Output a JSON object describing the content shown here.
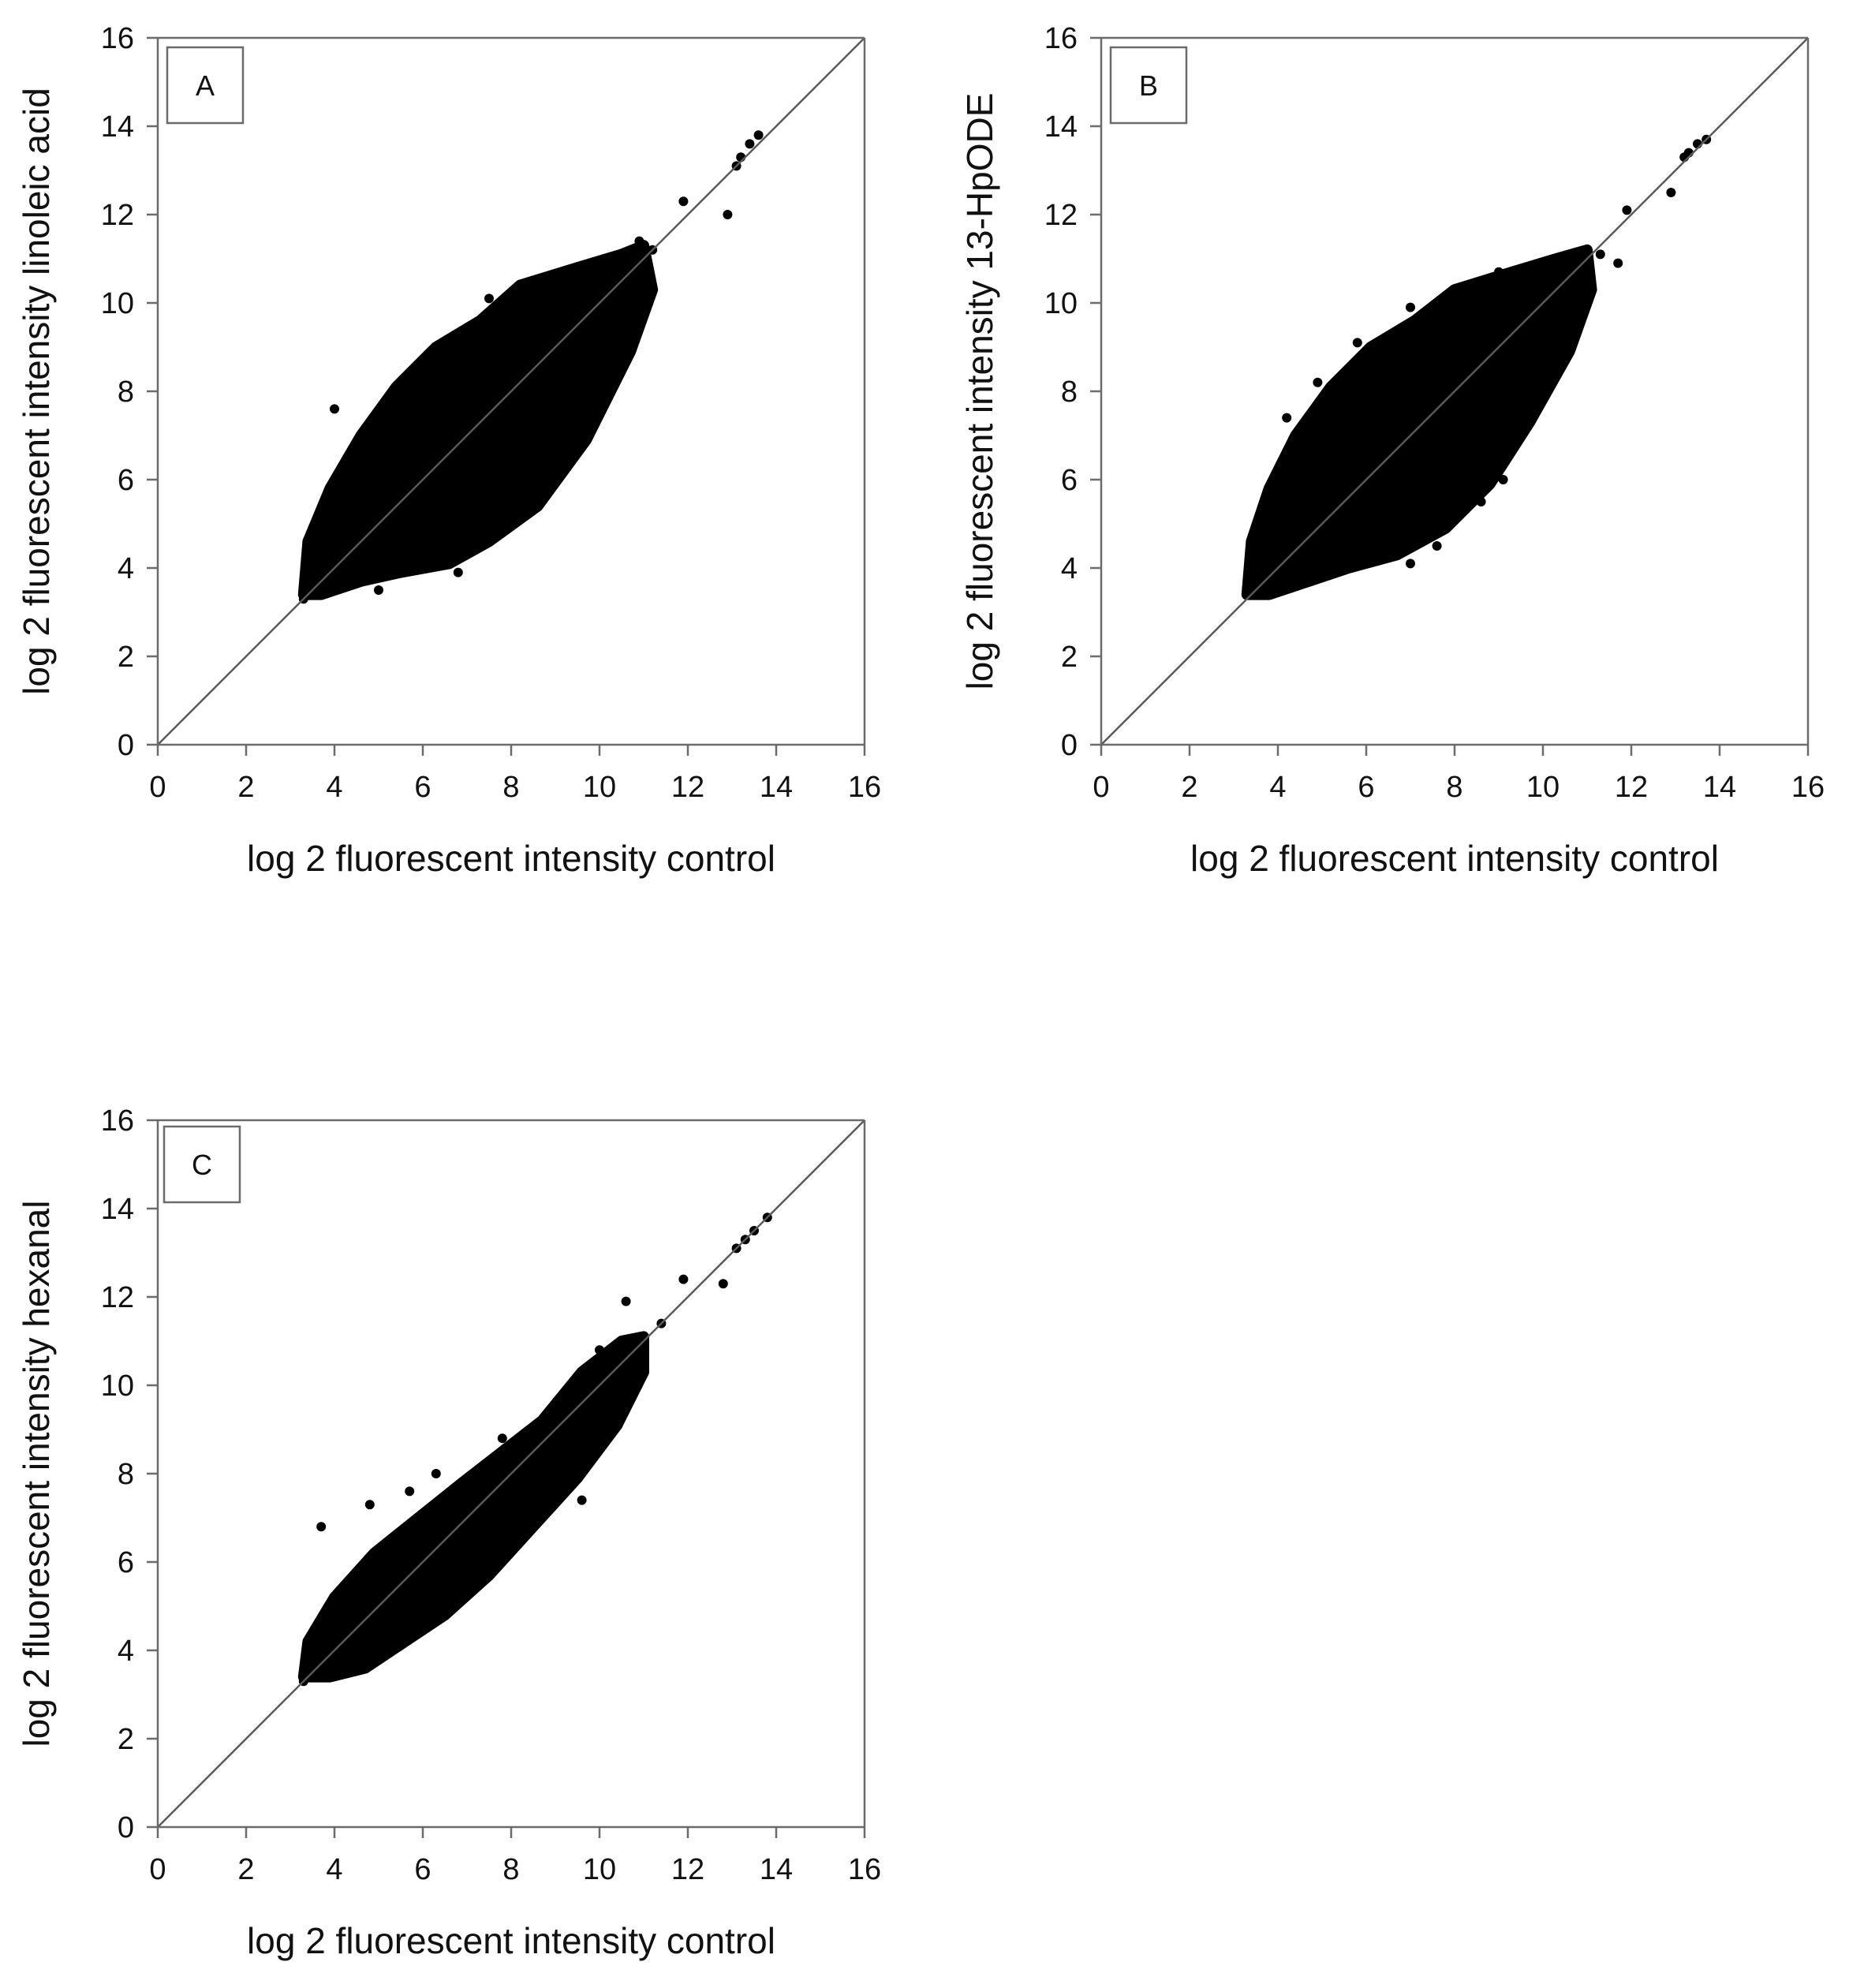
{
  "chart_data": [
    {
      "type": "scatter",
      "panel_label": "A",
      "xlabel": "log 2 fluorescent intensity control",
      "ylabel": "log 2 fluorescent intensity linoleic acid",
      "xlim": [
        0,
        16
      ],
      "ylim": [
        0,
        16
      ],
      "xticks": [
        "0",
        "2",
        "4",
        "6",
        "8",
        "10",
        "12",
        "14",
        "16"
      ],
      "yticks": [
        "0",
        "2",
        "4",
        "6",
        "8",
        "10",
        "12",
        "14",
        "16"
      ],
      "reference_line": "y = x",
      "cloud": [
        [
          3.3,
          3.4
        ],
        [
          3.7,
          3.4
        ],
        [
          4.6,
          3.7
        ],
        [
          5.5,
          3.9
        ],
        [
          6.6,
          4.1
        ],
        [
          7.5,
          4.6
        ],
        [
          8.6,
          5.4
        ],
        [
          9.7,
          6.9
        ],
        [
          10.7,
          8.9
        ],
        [
          11.2,
          10.3
        ],
        [
          11.0,
          11.3
        ],
        [
          10.5,
          11.1
        ],
        [
          9.5,
          10.8
        ],
        [
          8.2,
          10.4
        ],
        [
          7.3,
          9.6
        ],
        [
          6.3,
          9.0
        ],
        [
          5.4,
          8.1
        ],
        [
          4.6,
          7.0
        ],
        [
          3.9,
          5.8
        ],
        [
          3.4,
          4.6
        ]
      ],
      "outliers": [
        [
          13.6,
          13.8
        ],
        [
          13.4,
          13.6
        ],
        [
          13.2,
          13.3
        ],
        [
          13.1,
          13.1
        ],
        [
          11.9,
          12.3
        ],
        [
          12.9,
          12.0
        ],
        [
          11.2,
          11.2
        ],
        [
          10.9,
          11.4
        ],
        [
          8.9,
          10.0
        ],
        [
          7.5,
          10.1
        ],
        [
          6.5,
          9.0
        ],
        [
          4.0,
          7.6
        ],
        [
          9.3,
          6.9
        ],
        [
          6.8,
          3.9
        ],
        [
          5.0,
          3.5
        ],
        [
          4.2,
          3.6
        ],
        [
          10.3,
          10.6
        ],
        [
          9.9,
          10.8
        ],
        [
          3.3,
          3.3
        ],
        [
          8.1,
          5.1
        ]
      ]
    },
    {
      "type": "scatter",
      "panel_label": "B",
      "xlabel": "log 2 fluorescent intensity control",
      "ylabel": "log 2 fluorescent intensity 13-HpODE",
      "xlim": [
        0,
        16
      ],
      "ylim": [
        0,
        16
      ],
      "xticks": [
        "0",
        "2",
        "4",
        "6",
        "8",
        "10",
        "12",
        "14",
        "16"
      ],
      "yticks": [
        "0",
        "2",
        "4",
        "6",
        "8",
        "10",
        "12",
        "14",
        "16"
      ],
      "reference_line": "y = x",
      "cloud": [
        [
          3.3,
          3.4
        ],
        [
          3.8,
          3.4
        ],
        [
          4.7,
          3.7
        ],
        [
          5.6,
          4.0
        ],
        [
          6.7,
          4.3
        ],
        [
          7.8,
          4.9
        ],
        [
          8.8,
          5.9
        ],
        [
          9.7,
          7.3
        ],
        [
          10.6,
          8.9
        ],
        [
          11.1,
          10.3
        ],
        [
          11.0,
          11.2
        ],
        [
          10.3,
          11.0
        ],
        [
          9.3,
          10.7
        ],
        [
          8.0,
          10.3
        ],
        [
          7.1,
          9.6
        ],
        [
          6.1,
          9.0
        ],
        [
          5.2,
          8.1
        ],
        [
          4.4,
          7.0
        ],
        [
          3.8,
          5.8
        ],
        [
          3.4,
          4.6
        ]
      ],
      "outliers": [
        [
          13.7,
          13.7
        ],
        [
          13.5,
          13.6
        ],
        [
          13.3,
          13.4
        ],
        [
          13.2,
          13.3
        ],
        [
          11.9,
          12.1
        ],
        [
          12.9,
          12.5
        ],
        [
          11.7,
          10.9
        ],
        [
          11.3,
          11.1
        ],
        [
          9.0,
          10.7
        ],
        [
          7.0,
          9.9
        ],
        [
          5.8,
          9.1
        ],
        [
          4.2,
          7.4
        ],
        [
          4.9,
          8.2
        ],
        [
          9.1,
          6.0
        ],
        [
          7.6,
          4.5
        ],
        [
          7.0,
          4.1
        ],
        [
          3.4,
          4.1
        ],
        [
          3.7,
          3.6
        ],
        [
          10.8,
          10.2
        ],
        [
          8.6,
          5.5
        ]
      ]
    },
    {
      "type": "scatter",
      "panel_label": "C",
      "xlabel": "log 2 fluorescent intensity control",
      "ylabel": "log 2 fluorescent intensity hexanal",
      "xlim": [
        0,
        16
      ],
      "ylim": [
        0,
        16
      ],
      "xticks": [
        "0",
        "2",
        "4",
        "6",
        "8",
        "10",
        "12",
        "14",
        "16"
      ],
      "yticks": [
        "0",
        "2",
        "4",
        "6",
        "8",
        "10",
        "12",
        "14",
        "16"
      ],
      "reference_line": "y = x",
      "cloud": [
        [
          3.3,
          3.4
        ],
        [
          3.9,
          3.4
        ],
        [
          4.7,
          3.6
        ],
        [
          5.6,
          4.2
        ],
        [
          6.5,
          4.8
        ],
        [
          7.5,
          5.7
        ],
        [
          8.5,
          6.8
        ],
        [
          9.5,
          7.9
        ],
        [
          10.4,
          9.1
        ],
        [
          11.0,
          10.3
        ],
        [
          11.0,
          11.1
        ],
        [
          10.5,
          11.0
        ],
        [
          9.6,
          10.3
        ],
        [
          8.7,
          9.2
        ],
        [
          7.8,
          8.5
        ],
        [
          6.9,
          7.8
        ],
        [
          5.9,
          7.0
        ],
        [
          4.9,
          6.2
        ],
        [
          4.0,
          5.2
        ],
        [
          3.4,
          4.2
        ]
      ],
      "outliers": [
        [
          13.8,
          13.8
        ],
        [
          13.5,
          13.5
        ],
        [
          13.3,
          13.3
        ],
        [
          13.1,
          13.1
        ],
        [
          11.9,
          12.4
        ],
        [
          12.8,
          12.3
        ],
        [
          10.6,
          11.9
        ],
        [
          11.4,
          11.4
        ],
        [
          10.9,
          11.0
        ],
        [
          3.7,
          6.8
        ],
        [
          4.8,
          7.3
        ],
        [
          5.7,
          7.6
        ],
        [
          6.3,
          8.0
        ],
        [
          9.6,
          7.4
        ],
        [
          7.0,
          5.3
        ],
        [
          6.8,
          5.2
        ],
        [
          4.5,
          3.6
        ],
        [
          7.8,
          8.8
        ],
        [
          10.0,
          10.8
        ],
        [
          3.3,
          3.3
        ]
      ]
    }
  ]
}
